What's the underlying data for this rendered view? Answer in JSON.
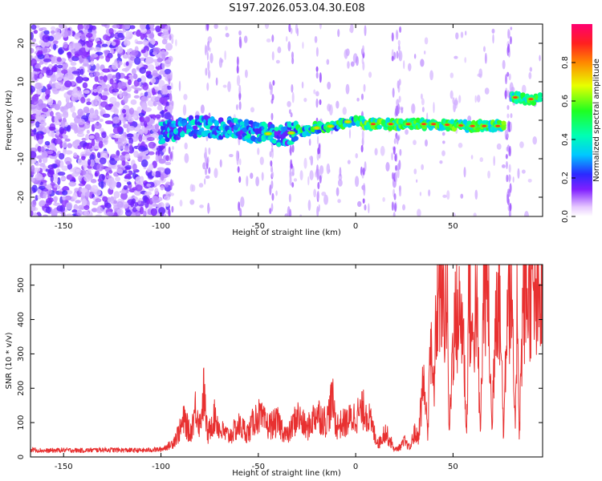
{
  "title": "S197.2026.053.04.30.E08",
  "colors": {
    "snr_line": "#e83030",
    "frame": "#000000"
  },
  "chart_data": [
    {
      "type": "heatmap",
      "name": "spectrogram",
      "xlabel": "Height of straight line (km)",
      "ylabel": "Frequency (Hz)",
      "xlim": [
        -167,
        96
      ],
      "ylim": [
        -25,
        25
      ],
      "xticks": [
        -150,
        -100,
        -50,
        0,
        50
      ],
      "yticks": [
        -20,
        -10,
        0,
        10,
        20
      ],
      "colorbar": {
        "label": "Normalized spectral amplitude",
        "range": [
          0,
          1
        ],
        "ticks": [
          0.0,
          0.2,
          0.4,
          0.6,
          0.8
        ]
      },
      "ridge": [
        {
          "x": -98,
          "y": -3
        },
        {
          "x": -90,
          "y": -2
        },
        {
          "x": -80,
          "y": -1.5
        },
        {
          "x": -70,
          "y": -2
        },
        {
          "x": -60,
          "y": -2.5
        },
        {
          "x": -50,
          "y": -3
        },
        {
          "x": -40,
          "y": -4
        },
        {
          "x": -30,
          "y": -3
        },
        {
          "x": -20,
          "y": -2
        },
        {
          "x": -12,
          "y": -1.5
        },
        {
          "x": -5,
          "y": -0.5
        },
        {
          "x": 0,
          "y": 0
        },
        {
          "x": 5,
          "y": -1
        },
        {
          "x": 20,
          "y": -1
        },
        {
          "x": 40,
          "y": -1
        },
        {
          "x": 60,
          "y": -1.5
        },
        {
          "x": 76,
          "y": -1.5
        },
        {
          "x": 81,
          "y": 6
        },
        {
          "x": 88,
          "y": 5.5
        },
        {
          "x": 94,
          "y": 5.5
        }
      ]
    },
    {
      "type": "line",
      "name": "snr",
      "xlabel": "Height of straight line (km)",
      "ylabel": "SNR (10 * v/v)",
      "xlim": [
        -167,
        96
      ],
      "ylim": [
        0,
        560
      ],
      "xticks": [
        -150,
        -100,
        -50,
        0,
        50
      ],
      "yticks": [
        0,
        100,
        200,
        300,
        400,
        500
      ],
      "series": [
        {
          "name": "SNR",
          "x": [
            -167,
            -160,
            -150,
            -140,
            -130,
            -120,
            -110,
            -100,
            -95,
            -92,
            -90,
            -88,
            -85,
            -82,
            -80,
            -78,
            -76,
            -74,
            -72,
            -70,
            -65,
            -60,
            -55,
            -52,
            -50,
            -45,
            -40,
            -35,
            -30,
            -25,
            -20,
            -15,
            -12,
            -10,
            -5,
            0,
            5,
            8,
            10,
            12,
            15,
            18,
            20,
            23,
            25,
            28,
            30,
            32,
            35,
            37,
            38,
            40,
            42,
            44,
            45,
            47,
            48,
            50,
            52,
            55,
            57,
            58,
            60,
            62,
            64,
            66,
            68,
            70,
            72,
            74,
            76,
            78,
            80,
            82,
            83,
            84,
            86,
            88,
            90,
            92,
            94,
            96
          ],
          "values": [
            22,
            18,
            20,
            19,
            21,
            20,
            19,
            22,
            35,
            60,
            80,
            110,
            65,
            150,
            90,
            190,
            60,
            100,
            120,
            80,
            60,
            90,
            70,
            110,
            120,
            90,
            100,
            60,
            120,
            80,
            130,
            100,
            170,
            90,
            100,
            120,
            140,
            95,
            60,
            40,
            75,
            45,
            20,
            30,
            45,
            25,
            70,
            55,
            230,
            60,
            340,
            190,
            470,
            510,
            420,
            480,
            60,
            350,
            410,
            400,
            55,
            510,
            320,
            470,
            60,
            540,
            475,
            70,
            500,
            460,
            60,
            520,
            440,
            60,
            510,
            70,
            460,
            470,
            490,
            430,
            430,
            470
          ]
        }
      ]
    }
  ]
}
